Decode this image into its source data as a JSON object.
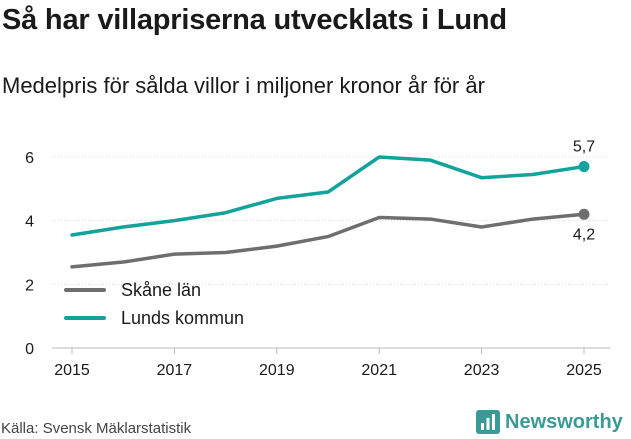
{
  "header": {
    "title": "Så har villapriserna utvecklats i Lund",
    "subtitle": "Medelpris för sålda villor i miljoner kronor år för år"
  },
  "footer": {
    "source": "Källa: Svensk Mäklarstatistik",
    "brand": "Newsworthy",
    "brand_icon": "bar-chart-icon"
  },
  "colors": {
    "skane": "#6e6e6e",
    "lund": "#12a39a",
    "grid": "#dcdcdc",
    "brand": "#3a9a95"
  },
  "chart_data": {
    "type": "line",
    "title": "Så har villapriserna utvecklats i Lund",
    "subtitle": "Medelpris för sålda villor i miljoner kronor år för år",
    "xlabel": "",
    "ylabel": "",
    "x": [
      2015,
      2016,
      2017,
      2018,
      2019,
      2020,
      2021,
      2022,
      2023,
      2024,
      2025
    ],
    "x_ticks": [
      "2015",
      "2017",
      "2019",
      "2021",
      "2023",
      "2025"
    ],
    "xlim": [
      2015,
      2025
    ],
    "y_ticks": [
      "0",
      "2",
      "4",
      "6"
    ],
    "ylim": [
      0,
      6
    ],
    "grid": true,
    "legend_position": "bottom-left",
    "series": [
      {
        "name": "Skåne län",
        "color": "#6e6e6e",
        "values": [
          2.55,
          2.7,
          2.95,
          3.0,
          3.2,
          3.5,
          4.1,
          4.05,
          3.8,
          4.05,
          4.2
        ],
        "end_label": "4,2"
      },
      {
        "name": "Lunds kommun",
        "color": "#12a39a",
        "values": [
          3.55,
          3.8,
          4.0,
          4.25,
          4.7,
          4.9,
          6.0,
          5.9,
          5.35,
          5.45,
          5.7
        ],
        "end_label": "5,7"
      }
    ]
  }
}
